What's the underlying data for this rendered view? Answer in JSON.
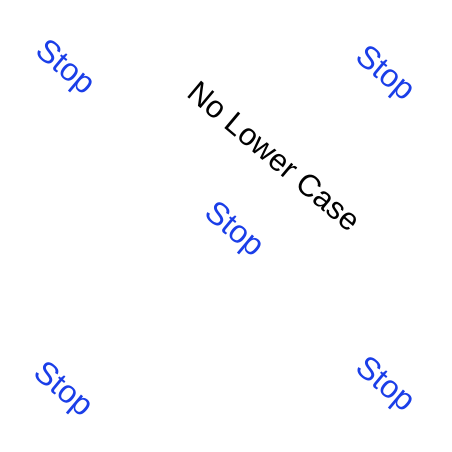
{
  "colors": {
    "background": "#ffffff",
    "stop_text": "#1a3ee8",
    "headline_text": "#000000"
  },
  "headline": "No Lower Case",
  "stops": [
    "Stop",
    "Stop",
    "Stop",
    "Stop",
    "Stop"
  ]
}
